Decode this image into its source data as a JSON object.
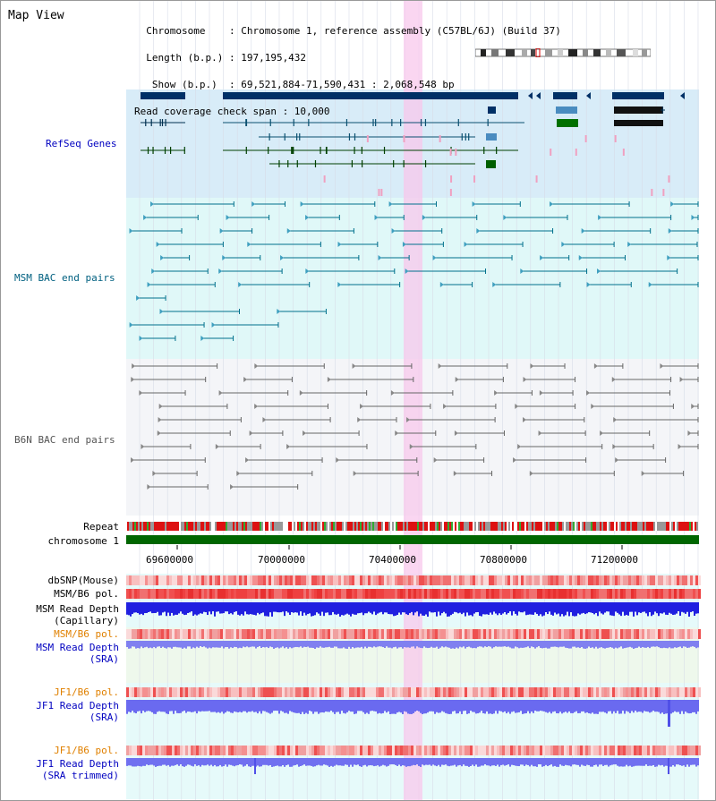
{
  "header": {
    "title": "Map View",
    "info_lines": [
      "  Chromosome    : Chromosome 1, reference assembly (C57BL/6J) (Build 37)",
      "  Length (b.p.) : 197,195,432",
      "   Show (b.p.)  : 69,521,884-71,590,431 : 2,068,548 bp",
      "Read coverage check span : 10,000"
    ]
  },
  "tracks": {
    "refseq": "RefSeq Genes",
    "msm_bac": "MSM BAC end pairs",
    "b6n_bac": "B6N BAC end pairs",
    "repeat": "Repeat",
    "chromosome": "chromosome 1",
    "dbsnp": "dbSNP(Mouse)",
    "msm_b6_pol": "MSM/B6 pol.",
    "msm_depth_cap_1": "MSM Read Depth",
    "msm_depth_cap_2": "(Capillary)",
    "msm_b6_pol_2": "MSM/B6 pol.",
    "msm_depth_sra_1": "MSM Read Depth",
    "msm_depth_sra_2": "(SRA)",
    "jf1_b6_pol": "JF1/B6 pol.",
    "jf1_depth_sra_1": "JF1 Read Depth",
    "jf1_depth_sra_2": "(SRA)",
    "jf1_b6_pol_2": "JF1/B6 pol.",
    "jf1_depth_trim_1": "JF1 Read Depth",
    "jf1_depth_trim_2": "(SRA trimmed)"
  },
  "axis": {
    "ticks": [
      "69600000",
      "70000000",
      "70400000",
      "70800000",
      "71200000"
    ]
  },
  "colors": {
    "refseq_bg": "#d8ecf8",
    "msm_bg": "#e0f8f8",
    "b6n_bg": "#f2f4f8",
    "highlight": "#f8c8ec",
    "gene_dark": "#003066",
    "gene_green": "#006000",
    "label_blue": "#0000c0",
    "label_orange": "#e08000",
    "chrom_green": "#006600"
  }
}
